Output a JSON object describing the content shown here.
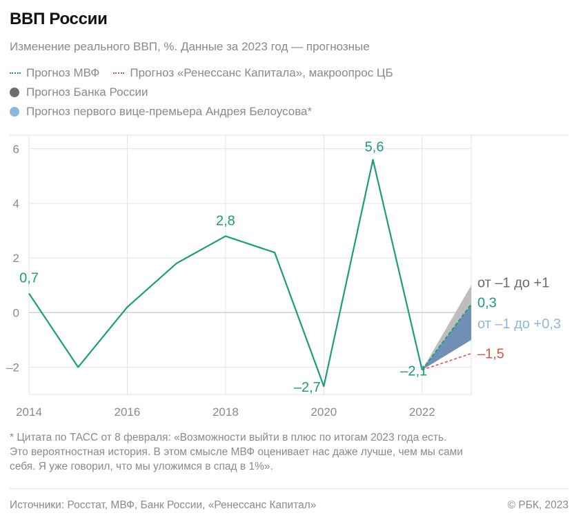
{
  "title": "ВВП России",
  "subtitle": "Изменение реального ВВП, %. Данные за 2023 год — прогнозные",
  "legend": {
    "imf": "Прогноз МВФ",
    "renaissance": "Прогноз «Ренессанс Капитала», макроопрос ЦБ",
    "cbr": "Прогноз Банка России",
    "belousov": "Прогноз первого вице-премьера Андрея Белоусова*"
  },
  "colors": {
    "main": "#1a9e78",
    "imf": "#1a9e78",
    "renaissance": "#d9534f",
    "cbr": "#bdbdbd",
    "belousov_fill": "#6f8fb5",
    "belousov_label": "#8cb8e0",
    "axis_text": "#8a8a8a",
    "grid": "#e3e3e3"
  },
  "chart_data": {
    "type": "line",
    "x": [
      2014,
      2015,
      2016,
      2017,
      2018,
      2019,
      2020,
      2021,
      2022
    ],
    "values": [
      0.7,
      -2.0,
      0.2,
      1.8,
      2.8,
      2.2,
      -2.7,
      5.6,
      -2.1
    ],
    "xticks": [
      2014,
      2016,
      2018,
      2020,
      2022
    ],
    "yticks": [
      -2,
      0,
      2,
      4,
      6
    ],
    "xlim": [
      2014,
      2023
    ],
    "ylim": [
      -3,
      6.5
    ],
    "data_labels": [
      {
        "x": 2014,
        "y": 0.7,
        "text": "0,7"
      },
      {
        "x": 2018,
        "y": 2.8,
        "text": "2,8"
      },
      {
        "x": 2020,
        "y": -2.7,
        "text": "–2,7"
      },
      {
        "x": 2021,
        "y": 5.6,
        "text": "5,6"
      },
      {
        "x": 2022,
        "y": -2.1,
        "text": "–2,1"
      }
    ],
    "forecasts": {
      "imf": {
        "from": [
          2022,
          -2.1
        ],
        "to": [
          2023,
          0.3
        ],
        "label": "0,3"
      },
      "renaissance": {
        "from": [
          2022,
          -2.1
        ],
        "to": [
          2023,
          -1.5
        ],
        "label": "–1,5"
      },
      "cbr": {
        "from": [
          2022,
          -2.1
        ],
        "range": [
          -1,
          1
        ],
        "label": "от –1 до +1"
      },
      "belousov": {
        "from": [
          2022,
          -2.1
        ],
        "range": [
          -1,
          0.3
        ],
        "label": "от –1 до +0,3"
      }
    }
  },
  "footnote": {
    "line1": "* Цитата по ТАСС от 8 февраля: «Возможности выйти в плюс по итогам 2023 года есть.",
    "line2": "Это вероятностная история. В этом смысле МВФ оценивает нас даже лучше, чем мы сами",
    "line3": "себя. Я уже говорил, что мы уложимся в спад в 1%»."
  },
  "sources": "Источники: Росстат, МВФ, Банк России, «Ренессанс Капитал»",
  "copyright": "© РБК, 2023"
}
